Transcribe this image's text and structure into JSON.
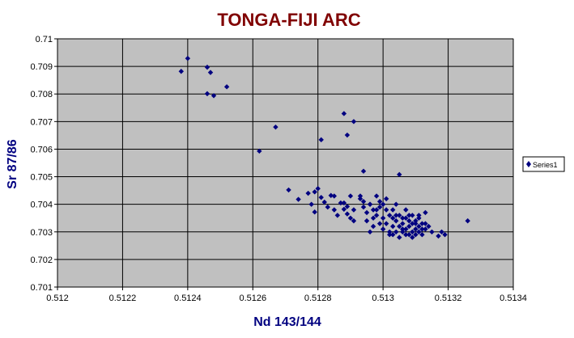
{
  "chart_data": {
    "type": "scatter",
    "title": "TONGA-FIJI ARC",
    "xlabel": "Nd 143/144",
    "ylabel": "Sr 87/86",
    "xlim": [
      0.512,
      0.5134
    ],
    "ylim": [
      0.701,
      0.71
    ],
    "xticks": [
      "0.512",
      "0.5122",
      "0.5124",
      "0.5126",
      "0.5128",
      "0.513",
      "0.5132",
      "0.5134"
    ],
    "yticks": [
      "0.701",
      "0.702",
      "0.703",
      "0.704",
      "0.705",
      "0.706",
      "0.707",
      "0.708",
      "0.709",
      "0.71"
    ],
    "grid": true,
    "legend": {
      "placement": "right",
      "entries": [
        "Series1"
      ]
    },
    "colors": {
      "plot_bg": "#c0c0c0",
      "marker": "#000080",
      "title": "#800000",
      "axis_label": "#000080",
      "grid": "#000000"
    },
    "series": [
      {
        "name": "Series1",
        "points": [
          [
            0.51238,
            0.70882
          ],
          [
            0.5124,
            0.70929
          ],
          [
            0.51246,
            0.70897
          ],
          [
            0.51247,
            0.70878
          ],
          [
            0.51246,
            0.70801
          ],
          [
            0.51248,
            0.70794
          ],
          [
            0.51252,
            0.70826
          ],
          [
            0.51262,
            0.70593
          ],
          [
            0.51267,
            0.7068
          ],
          [
            0.51281,
            0.70634
          ],
          [
            0.51288,
            0.70729
          ],
          [
            0.51291,
            0.707
          ],
          [
            0.51289,
            0.70651
          ],
          [
            0.51294,
            0.7052
          ],
          [
            0.51305,
            0.70508
          ],
          [
            0.51326,
            0.7034
          ],
          [
            0.51271,
            0.70452
          ],
          [
            0.51274,
            0.70418
          ],
          [
            0.51277,
            0.7044
          ],
          [
            0.51278,
            0.704
          ],
          [
            0.51279,
            0.70372
          ],
          [
            0.51279,
            0.70445
          ],
          [
            0.5128,
            0.70457
          ],
          [
            0.51281,
            0.70425
          ],
          [
            0.51282,
            0.70408
          ],
          [
            0.51283,
            0.7039
          ],
          [
            0.51284,
            0.70432
          ],
          [
            0.51285,
            0.7038
          ],
          [
            0.51285,
            0.7043
          ],
          [
            0.51286,
            0.7036
          ],
          [
            0.51287,
            0.70405
          ],
          [
            0.51288,
            0.70382
          ],
          [
            0.51288,
            0.70405
          ],
          [
            0.51289,
            0.70365
          ],
          [
            0.51289,
            0.70392
          ],
          [
            0.5129,
            0.7035
          ],
          [
            0.5129,
            0.7043
          ],
          [
            0.51291,
            0.7038
          ],
          [
            0.51291,
            0.7034
          ],
          [
            0.51293,
            0.7042
          ],
          [
            0.51293,
            0.7043
          ],
          [
            0.51294,
            0.7039
          ],
          [
            0.51294,
            0.7041
          ],
          [
            0.51295,
            0.7037
          ],
          [
            0.51295,
            0.7034
          ],
          [
            0.51296,
            0.704
          ],
          [
            0.51296,
            0.703
          ],
          [
            0.51297,
            0.7038
          ],
          [
            0.51297,
            0.7035
          ],
          [
            0.51297,
            0.7032
          ],
          [
            0.51298,
            0.7043
          ],
          [
            0.51298,
            0.7036
          ],
          [
            0.51299,
            0.7039
          ],
          [
            0.51299,
            0.7033
          ],
          [
            0.513,
            0.704
          ],
          [
            0.513,
            0.7035
          ],
          [
            0.513,
            0.7031
          ],
          [
            0.51301,
            0.7038
          ],
          [
            0.51301,
            0.7033
          ],
          [
            0.51301,
            0.7042
          ],
          [
            0.51302,
            0.703
          ],
          [
            0.51302,
            0.7036
          ],
          [
            0.51302,
            0.7029
          ],
          [
            0.51303,
            0.7035
          ],
          [
            0.51303,
            0.7032
          ],
          [
            0.51303,
            0.7038
          ],
          [
            0.51304,
            0.704
          ],
          [
            0.51304,
            0.7034
          ],
          [
            0.51304,
            0.703
          ],
          [
            0.51305,
            0.7036
          ],
          [
            0.51305,
            0.7032
          ],
          [
            0.51305,
            0.7028
          ],
          [
            0.51306,
            0.7035
          ],
          [
            0.51306,
            0.7033
          ],
          [
            0.51306,
            0.703
          ],
          [
            0.51307,
            0.7038
          ],
          [
            0.51307,
            0.7031
          ],
          [
            0.51307,
            0.7035
          ],
          [
            0.51308,
            0.7032
          ],
          [
            0.51308,
            0.7029
          ],
          [
            0.51308,
            0.7034
          ],
          [
            0.51309,
            0.703
          ],
          [
            0.51309,
            0.7033
          ],
          [
            0.51309,
            0.7036
          ],
          [
            0.5131,
            0.7031
          ],
          [
            0.5131,
            0.7029
          ],
          [
            0.5131,
            0.7034
          ],
          [
            0.51311,
            0.7032
          ],
          [
            0.51311,
            0.703
          ],
          [
            0.51311,
            0.7035
          ],
          [
            0.51312,
            0.7033
          ],
          [
            0.51312,
            0.7029
          ],
          [
            0.51313,
            0.7037
          ],
          [
            0.51313,
            0.7031
          ],
          [
            0.51314,
            0.7032
          ],
          [
            0.51315,
            0.703
          ],
          [
            0.51317,
            0.70285
          ],
          [
            0.51318,
            0.703
          ],
          [
            0.51319,
            0.7029
          ],
          [
            0.51296,
            0.704
          ],
          [
            0.51298,
            0.7038
          ],
          [
            0.51299,
            0.7041
          ],
          [
            0.51303,
            0.7029
          ],
          [
            0.51304,
            0.7036
          ],
          [
            0.51306,
            0.7031
          ],
          [
            0.51307,
            0.7029
          ],
          [
            0.51308,
            0.7036
          ],
          [
            0.51309,
            0.7028
          ],
          [
            0.5131,
            0.7033
          ],
          [
            0.51311,
            0.7036
          ],
          [
            0.51312,
            0.7031
          ],
          [
            0.51313,
            0.7033
          ]
        ]
      }
    ]
  }
}
